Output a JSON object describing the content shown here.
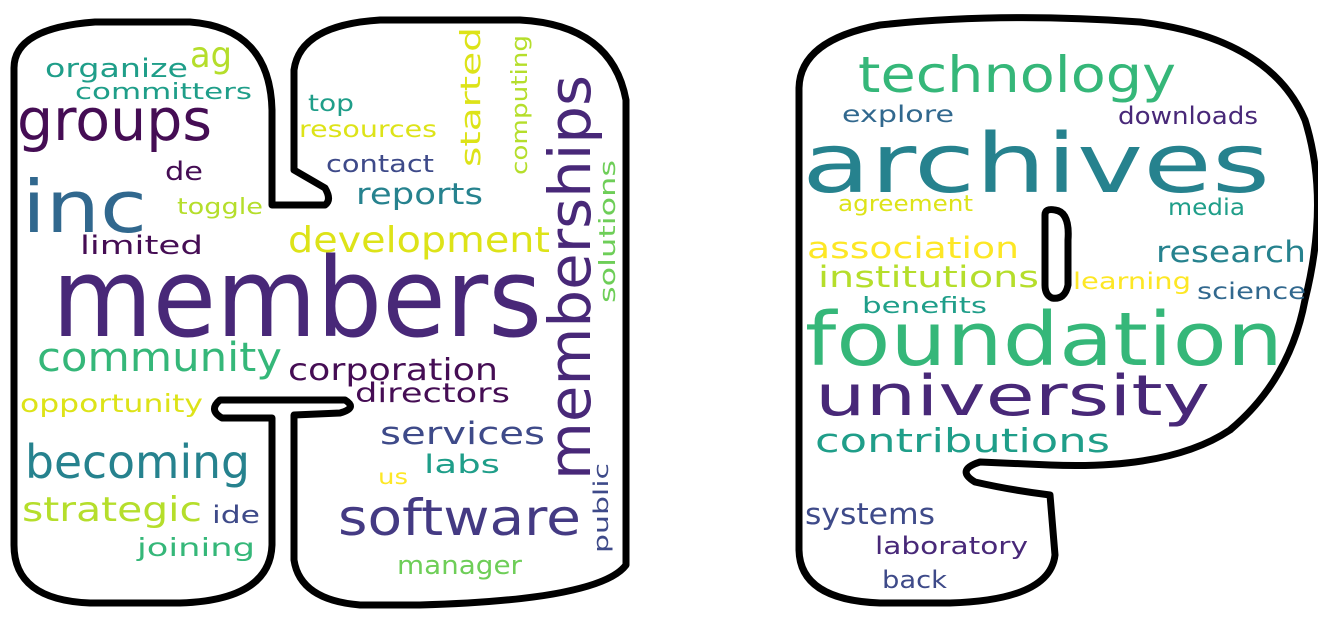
{
  "palette": {
    "dark_purple": "#450d54",
    "purple": "#482878",
    "indigo": "#443a83",
    "blue": "#3e4a89",
    "steel_blue": "#31688e",
    "teal": "#26828e",
    "sea_green": "#1f9e89",
    "green": "#35b779",
    "light_green": "#6ece58",
    "lime": "#b5de2b",
    "yellow": "#dde318",
    "gold": "#fde725"
  },
  "words": [
    {
      "id": "members",
      "text": "members",
      "color": "#482878"
    },
    {
      "id": "memberships",
      "text": "memberships",
      "color": "#482878"
    },
    {
      "id": "groups",
      "text": "groups",
      "color": "#450d54"
    },
    {
      "id": "inc",
      "text": "inc",
      "color": "#31688e"
    },
    {
      "id": "software",
      "text": "software",
      "color": "#443a83"
    },
    {
      "id": "becoming",
      "text": "becoming",
      "color": "#26828e"
    },
    {
      "id": "community",
      "text": "community",
      "color": "#35b779"
    },
    {
      "id": "development",
      "text": "development",
      "color": "#dde318"
    },
    {
      "id": "strategic",
      "text": "strategic",
      "color": "#b5de2b"
    },
    {
      "id": "corporation",
      "text": "corporation",
      "color": "#450d54"
    },
    {
      "id": "services",
      "text": "services",
      "color": "#3e4a89"
    },
    {
      "id": "reports",
      "text": "reports",
      "color": "#26828e"
    },
    {
      "id": "directors",
      "text": "directors",
      "color": "#450d54"
    },
    {
      "id": "organize",
      "text": "organize",
      "color": "#1f9e89"
    },
    {
      "id": "ag",
      "text": "ag",
      "color": "#b5de2b"
    },
    {
      "id": "committers",
      "text": "committers",
      "color": "#1f9e89"
    },
    {
      "id": "de",
      "text": "de",
      "color": "#450d54"
    },
    {
      "id": "toggle",
      "text": "toggle",
      "color": "#b5de2b"
    },
    {
      "id": "limited",
      "text": "limited",
      "color": "#450d54"
    },
    {
      "id": "opportunity",
      "text": "opportunity",
      "color": "#dde318"
    },
    {
      "id": "ide",
      "text": "ide",
      "color": "#3e4a89"
    },
    {
      "id": "joining",
      "text": "joining",
      "color": "#35b779"
    },
    {
      "id": "top",
      "text": "top",
      "color": "#1f9e89"
    },
    {
      "id": "resources",
      "text": "resources",
      "color": "#dde318"
    },
    {
      "id": "contact",
      "text": "contact",
      "color": "#3e4a89"
    },
    {
      "id": "started",
      "text": "started",
      "color": "#dde318"
    },
    {
      "id": "computing",
      "text": "computing",
      "color": "#b5de2b"
    },
    {
      "id": "solutions",
      "text": "solutions",
      "color": "#6ece58"
    },
    {
      "id": "labs",
      "text": "labs",
      "color": "#1f9e89"
    },
    {
      "id": "us",
      "text": "us",
      "color": "#fde725"
    },
    {
      "id": "public",
      "text": "public",
      "color": "#3e4a89"
    },
    {
      "id": "manager",
      "text": "manager",
      "color": "#6ece58"
    },
    {
      "id": "technology",
      "text": "technology",
      "color": "#35b779"
    },
    {
      "id": "archives",
      "text": "archives",
      "color": "#26828e"
    },
    {
      "id": "explore",
      "text": "explore",
      "color": "#31688e"
    },
    {
      "id": "downloads",
      "text": "downloads",
      "color": "#482878"
    },
    {
      "id": "agreement",
      "text": "agreement",
      "color": "#dde318"
    },
    {
      "id": "media",
      "text": "media",
      "color": "#1f9e89"
    },
    {
      "id": "association",
      "text": "association",
      "color": "#fde725"
    },
    {
      "id": "research",
      "text": "research",
      "color": "#26828e"
    },
    {
      "id": "institutions",
      "text": "institutions",
      "color": "#b5de2b"
    },
    {
      "id": "learning",
      "text": "learning",
      "color": "#fde725"
    },
    {
      "id": "benefits",
      "text": "benefits",
      "color": "#1f9e89"
    },
    {
      "id": "science",
      "text": "science",
      "color": "#31688e"
    },
    {
      "id": "foundation",
      "text": "foundation",
      "color": "#35b779"
    },
    {
      "id": "university",
      "text": "university",
      "color": "#482878"
    },
    {
      "id": "contributions",
      "text": "contributions",
      "color": "#1f9e89"
    },
    {
      "id": "systems",
      "text": "systems",
      "color": "#3e4a89"
    },
    {
      "id": "laboratory",
      "text": "laboratory",
      "color": "#482878"
    },
    {
      "id": "back",
      "text": "back",
      "color": "#3e4a89"
    }
  ]
}
